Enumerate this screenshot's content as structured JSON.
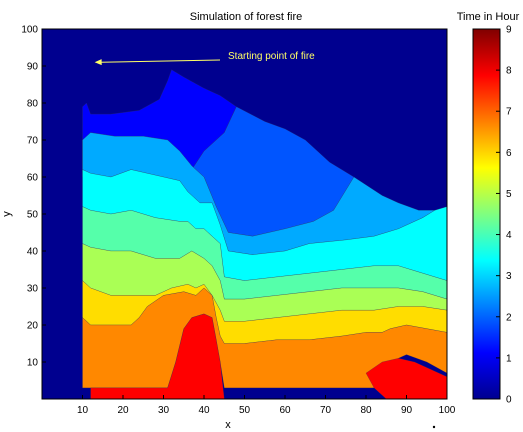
{
  "chart_data": {
    "type": "contour",
    "title": "Simulation of forest fire",
    "xlabel": "x",
    "ylabel": "y",
    "xlim": [
      0,
      100
    ],
    "ylim": [
      0,
      100
    ],
    "xticks": [
      10,
      20,
      30,
      40,
      50,
      60,
      70,
      80,
      90,
      100
    ],
    "yticks": [
      10,
      20,
      30,
      40,
      50,
      60,
      70,
      80,
      90,
      100
    ],
    "colorbar": {
      "title": "Time in Hour",
      "min": 0,
      "max": 9,
      "ticks": [
        0,
        1,
        2,
        3,
        4,
        5,
        6,
        7,
        8,
        9
      ]
    },
    "annotation": {
      "text": "Starting point of fire",
      "point": [
        13,
        91
      ]
    },
    "background_color": "#00008f",
    "levels": [
      {
        "level": 1,
        "color": "#0000ff",
        "points": [
          [
            11,
            80
          ],
          [
            12,
            77
          ],
          [
            17,
            77
          ],
          [
            24,
            78
          ],
          [
            29,
            81
          ],
          [
            31,
            86
          ],
          [
            32,
            89
          ],
          [
            35,
            87
          ],
          [
            40,
            84
          ],
          [
            44,
            82
          ],
          [
            48,
            79
          ],
          [
            45,
            72
          ],
          [
            40,
            67
          ],
          [
            37,
            62
          ],
          [
            35,
            60
          ],
          [
            30,
            59
          ],
          [
            22,
            62
          ],
          [
            16,
            60
          ],
          [
            11,
            61
          ],
          [
            10,
            60
          ],
          [
            10,
            79
          ]
        ]
      },
      {
        "level": 2,
        "color": "#0055ff",
        "points": [
          [
            10,
            70
          ],
          [
            12,
            72
          ],
          [
            18,
            71
          ],
          [
            25,
            71
          ],
          [
            31,
            70
          ],
          [
            34,
            67
          ],
          [
            37,
            63
          ],
          [
            40,
            60
          ],
          [
            43,
            52
          ],
          [
            46,
            45
          ],
          [
            52,
            44
          ],
          [
            60,
            46
          ],
          [
            67,
            48
          ],
          [
            72,
            51
          ],
          [
            77,
            60
          ],
          [
            71,
            64
          ],
          [
            65,
            70
          ],
          [
            60,
            73
          ],
          [
            55,
            75
          ],
          [
            48,
            79
          ],
          [
            45,
            72
          ],
          [
            40,
            67
          ],
          [
            37,
            62
          ],
          [
            35,
            60
          ],
          [
            30,
            59
          ],
          [
            22,
            62
          ],
          [
            16,
            60
          ],
          [
            11,
            61
          ],
          [
            10,
            60
          ]
        ]
      },
      {
        "level": 3,
        "color": "#00aaff",
        "points": [
          [
            10,
            62
          ],
          [
            12,
            61
          ],
          [
            17,
            60
          ],
          [
            22,
            62
          ],
          [
            30,
            60
          ],
          [
            34,
            59
          ],
          [
            36,
            56
          ],
          [
            39,
            53
          ],
          [
            42,
            53
          ],
          [
            43,
            50
          ],
          [
            44,
            47
          ],
          [
            46,
            40
          ],
          [
            52,
            39
          ],
          [
            60,
            40
          ],
          [
            66,
            42
          ],
          [
            75,
            43
          ],
          [
            82,
            44
          ],
          [
            88,
            46
          ],
          [
            94,
            49
          ],
          [
            97,
            51
          ],
          [
            93,
            51
          ],
          [
            88,
            53
          ],
          [
            84,
            55
          ],
          [
            77,
            60
          ],
          [
            72,
            51
          ],
          [
            67,
            48
          ],
          [
            60,
            46
          ],
          [
            52,
            44
          ],
          [
            46,
            45
          ],
          [
            43,
            52
          ],
          [
            40,
            60
          ],
          [
            37,
            63
          ],
          [
            34,
            67
          ],
          [
            31,
            70
          ],
          [
            25,
            71
          ],
          [
            18,
            71
          ],
          [
            12,
            72
          ],
          [
            10,
            70
          ]
        ]
      },
      {
        "level": 4,
        "color": "#00ffff",
        "points": [
          [
            10,
            52
          ],
          [
            12,
            51
          ],
          [
            17,
            50
          ],
          [
            22,
            51
          ],
          [
            28,
            49
          ],
          [
            34,
            48
          ],
          [
            36,
            48
          ],
          [
            38,
            46
          ],
          [
            40,
            46
          ],
          [
            42,
            44
          ],
          [
            44,
            42
          ],
          [
            45,
            33
          ],
          [
            50,
            32
          ],
          [
            58,
            33
          ],
          [
            66,
            34
          ],
          [
            74,
            35
          ],
          [
            82,
            36
          ],
          [
            88,
            36
          ],
          [
            94,
            34
          ],
          [
            100,
            32
          ],
          [
            100,
            52
          ],
          [
            97,
            51
          ],
          [
            94,
            49
          ],
          [
            88,
            46
          ],
          [
            82,
            44
          ],
          [
            75,
            43
          ],
          [
            66,
            42
          ],
          [
            60,
            40
          ],
          [
            52,
            39
          ],
          [
            46,
            40
          ],
          [
            44,
            47
          ],
          [
            43,
            50
          ],
          [
            42,
            53
          ],
          [
            39,
            53
          ],
          [
            36,
            56
          ],
          [
            34,
            59
          ],
          [
            30,
            60
          ],
          [
            22,
            62
          ],
          [
            17,
            60
          ],
          [
            12,
            61
          ],
          [
            10,
            62
          ]
        ]
      },
      {
        "level": 5,
        "color": "#55ffaa",
        "points": [
          [
            10,
            42
          ],
          [
            12,
            41
          ],
          [
            17,
            40
          ],
          [
            22,
            40
          ],
          [
            28,
            38
          ],
          [
            34,
            38
          ],
          [
            37,
            40
          ],
          [
            40,
            38
          ],
          [
            42,
            36
          ],
          [
            44,
            32
          ],
          [
            45,
            27
          ],
          [
            50,
            27
          ],
          [
            58,
            28
          ],
          [
            66,
            29
          ],
          [
            74,
            30
          ],
          [
            82,
            30
          ],
          [
            88,
            30
          ],
          [
            94,
            29
          ],
          [
            100,
            27
          ],
          [
            100,
            32
          ],
          [
            94,
            34
          ],
          [
            88,
            36
          ],
          [
            82,
            36
          ],
          [
            74,
            35
          ],
          [
            66,
            34
          ],
          [
            58,
            33
          ],
          [
            50,
            32
          ],
          [
            45,
            33
          ],
          [
            44,
            42
          ],
          [
            42,
            44
          ],
          [
            40,
            46
          ],
          [
            38,
            46
          ],
          [
            36,
            48
          ],
          [
            34,
            48
          ],
          [
            28,
            49
          ],
          [
            22,
            51
          ],
          [
            17,
            50
          ],
          [
            12,
            51
          ],
          [
            10,
            52
          ]
        ]
      },
      {
        "level": 6,
        "color": "#aaff55",
        "points": [
          [
            10,
            32
          ],
          [
            12,
            30
          ],
          [
            17,
            28
          ],
          [
            22,
            28
          ],
          [
            28,
            28
          ],
          [
            32,
            30
          ],
          [
            36,
            31
          ],
          [
            38,
            30
          ],
          [
            40,
            31
          ],
          [
            42,
            28
          ],
          [
            44,
            24
          ],
          [
            45,
            21
          ],
          [
            50,
            21
          ],
          [
            58,
            22
          ],
          [
            66,
            23
          ],
          [
            74,
            24
          ],
          [
            82,
            24
          ],
          [
            88,
            25
          ],
          [
            94,
            25
          ],
          [
            100,
            24
          ],
          [
            100,
            27
          ],
          [
            94,
            29
          ],
          [
            88,
            30
          ],
          [
            82,
            30
          ],
          [
            74,
            30
          ],
          [
            66,
            29
          ],
          [
            58,
            28
          ],
          [
            50,
            27
          ],
          [
            45,
            27
          ],
          [
            44,
            32
          ],
          [
            42,
            36
          ],
          [
            40,
            38
          ],
          [
            37,
            40
          ],
          [
            34,
            38
          ],
          [
            28,
            38
          ],
          [
            22,
            40
          ],
          [
            17,
            40
          ],
          [
            12,
            41
          ],
          [
            10,
            42
          ]
        ]
      },
      {
        "level": 7,
        "color": "#ffdd00",
        "points": [
          [
            10,
            22
          ],
          [
            12,
            20
          ],
          [
            17,
            20
          ],
          [
            22,
            20
          ],
          [
            24,
            22
          ],
          [
            26,
            25
          ],
          [
            30,
            28
          ],
          [
            35,
            29
          ],
          [
            38,
            28
          ],
          [
            40,
            30
          ],
          [
            42,
            28
          ],
          [
            43,
            22
          ],
          [
            44,
            17
          ],
          [
            45,
            15
          ],
          [
            50,
            15
          ],
          [
            58,
            16
          ],
          [
            66,
            16
          ],
          [
            74,
            17
          ],
          [
            80,
            18
          ],
          [
            84,
            18
          ],
          [
            86,
            19
          ],
          [
            90,
            20
          ],
          [
            95,
            19
          ],
          [
            100,
            18
          ],
          [
            100,
            24
          ],
          [
            94,
            25
          ],
          [
            88,
            25
          ],
          [
            82,
            24
          ],
          [
            74,
            24
          ],
          [
            66,
            23
          ],
          [
            58,
            22
          ],
          [
            50,
            21
          ],
          [
            45,
            21
          ],
          [
            44,
            24
          ],
          [
            42,
            28
          ],
          [
            40,
            31
          ],
          [
            38,
            30
          ],
          [
            36,
            31
          ],
          [
            32,
            30
          ],
          [
            28,
            28
          ],
          [
            22,
            28
          ],
          [
            17,
            28
          ],
          [
            12,
            30
          ],
          [
            10,
            32
          ]
        ]
      },
      {
        "level": 8,
        "color": "#ff8800",
        "points": [
          [
            10,
            15
          ],
          [
            10,
            3
          ],
          [
            12,
            3
          ],
          [
            20,
            3
          ],
          [
            26,
            3
          ],
          [
            31,
            3
          ],
          [
            33,
            10
          ],
          [
            35,
            19
          ],
          [
            37,
            22
          ],
          [
            40,
            23
          ],
          [
            42,
            22
          ],
          [
            43,
            16
          ],
          [
            44,
            10
          ],
          [
            45,
            3
          ],
          [
            50,
            3
          ],
          [
            58,
            3
          ],
          [
            66,
            3
          ],
          [
            74,
            3
          ],
          [
            80,
            3
          ],
          [
            82,
            3
          ],
          [
            82,
            7
          ],
          [
            85,
            9
          ],
          [
            88,
            11
          ],
          [
            90,
            12
          ],
          [
            95,
            10
          ],
          [
            100,
            7
          ],
          [
            100,
            18
          ],
          [
            95,
            19
          ],
          [
            90,
            20
          ],
          [
            86,
            19
          ],
          [
            84,
            18
          ],
          [
            80,
            18
          ],
          [
            74,
            17
          ],
          [
            66,
            16
          ],
          [
            58,
            16
          ],
          [
            50,
            15
          ],
          [
            45,
            15
          ],
          [
            44,
            17
          ],
          [
            43,
            22
          ],
          [
            42,
            28
          ],
          [
            40,
            30
          ],
          [
            38,
            28
          ],
          [
            35,
            29
          ],
          [
            30,
            28
          ],
          [
            26,
            25
          ],
          [
            24,
            22
          ],
          [
            22,
            20
          ],
          [
            17,
            20
          ],
          [
            12,
            20
          ],
          [
            10,
            22
          ]
        ]
      },
      {
        "level": 9,
        "color": "#ff0000",
        "points": [
          [
            12,
            3
          ],
          [
            12,
            0
          ],
          [
            45,
            0
          ],
          [
            44,
            10
          ],
          [
            43,
            16
          ],
          [
            42,
            22
          ],
          [
            40,
            23
          ],
          [
            37,
            22
          ],
          [
            35,
            19
          ],
          [
            33,
            10
          ],
          [
            31,
            3
          ],
          [
            26,
            3
          ],
          [
            20,
            3
          ]
        ]
      },
      {
        "level": 9,
        "color": "#ff0000",
        "points": [
          [
            80,
            7
          ],
          [
            84,
            10
          ],
          [
            88,
            11
          ],
          [
            92,
            10
          ],
          [
            96,
            8
          ],
          [
            100,
            6
          ],
          [
            100,
            0
          ],
          [
            85,
            0
          ],
          [
            82,
            3
          ]
        ]
      }
    ]
  }
}
